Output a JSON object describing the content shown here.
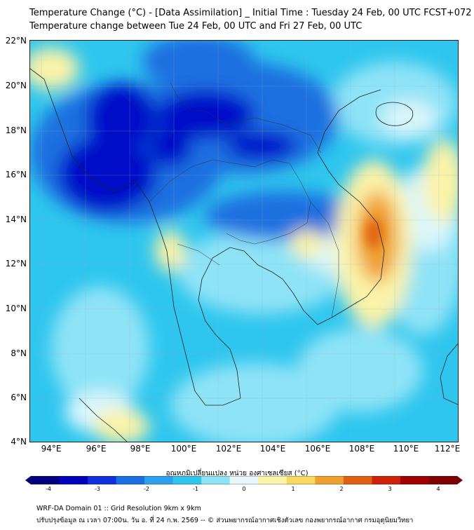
{
  "header": {
    "title_line1": "Temperature Change (°C) - [Data Assimilation] _ Initial Time : Tuesday 24 Feb, 00 UTC FCST+072",
    "title_line2": "Temperature change between Tue 24 Feb, 00 UTC and Fri 27 Feb, 00 UTC"
  },
  "map": {
    "lat_labels": [
      "22°N",
      "20°N",
      "18°N",
      "16°N",
      "14°N",
      "12°N",
      "10°N",
      "8°N",
      "6°N",
      "4°N"
    ],
    "lon_labels": [
      "94°E",
      "96°E",
      "98°E",
      "100°E",
      "102°E",
      "104°E",
      "106°E",
      "108°E",
      "110°E",
      "112°E"
    ],
    "colors": {
      "background_cyan": "#2ec6ee",
      "light_cyan": "#8fe3f7",
      "pale": "#d9f6fc",
      "blue": "#1a6fe0",
      "dark_blue": "#0010c8",
      "light_yellow": "#fbf3a8",
      "orange": "#f0a030",
      "dark_orange": "#e06010",
      "border": "#222222"
    }
  },
  "colorbar": {
    "label": "อุณหภูมิเปลี่ยนแปลง หน่วย องศาเซลเซียส (°C)",
    "ticks": [
      "-4",
      "-3",
      "-2",
      "-1",
      "0",
      "1",
      "2",
      "3",
      "4"
    ],
    "colors": [
      "#000080",
      "#0000c0",
      "#1030e0",
      "#1a6fe0",
      "#2ea0f0",
      "#2ec6ee",
      "#8fe3f7",
      "#e8f8fc",
      "#fbf3a8",
      "#f8d860",
      "#f0a030",
      "#e06010",
      "#d02008",
      "#a00000",
      "#800000"
    ]
  },
  "footer": {
    "line1": "WRF-DA Domain 01 :: Grid Resolution 9km x 9km",
    "line2": "ปรับปรุงข้อมูล ณ เวลา 07:00น. วัน อ. ที่ 24 ก.พ. 2569 -- © ส่วนพยากรณ์อากาศเชิงตัวเลข กองพยากรณ์อากาศ กรมอุตุนิยมวิทยา"
  }
}
